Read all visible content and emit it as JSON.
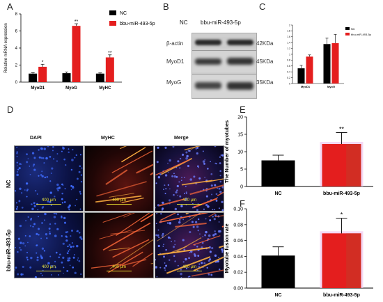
{
  "panels": {
    "A": "A",
    "B": "B",
    "C": "C",
    "D": "D",
    "E": "E",
    "F": "F"
  },
  "colors": {
    "nc": "#000000",
    "mir": "#e41e1e"
  },
  "chart_data": [
    {
      "id": "A",
      "type": "bar",
      "legend": [
        "NC",
        "bbu-miR-493-5p"
      ],
      "legend_position": "top-right",
      "ylabel": "Relative mRNA expression",
      "ylim": [
        0,
        8
      ],
      "yticks": [
        0,
        2,
        4,
        6,
        8
      ],
      "categories": [
        "MyoD1",
        "MyoG",
        "MyHC"
      ],
      "series": [
        {
          "name": "NC",
          "values": [
            1.0,
            1.05,
            1.0
          ],
          "errors": [
            0.1,
            0.12,
            0.08
          ]
        },
        {
          "name": "bbu-miR-493-5p",
          "values": [
            1.8,
            6.6,
            2.9
          ],
          "errors": [
            0.3,
            0.25,
            0.3
          ]
        }
      ],
      "annotations": [
        "*",
        "**",
        "**"
      ]
    },
    {
      "id": "C",
      "type": "bar",
      "legend": [
        "NC",
        "bbu-miR-493-5p"
      ],
      "legend_position": "top-right",
      "ylim": [
        0,
        2.0
      ],
      "yticks": [
        0,
        0.2,
        0.4,
        0.6,
        0.8,
        1.0,
        1.2,
        1.4,
        1.6,
        1.8,
        2.0
      ],
      "categories": [
        "MyoD1",
        "MyoG"
      ],
      "series": [
        {
          "name": "NC",
          "values": [
            0.52,
            1.35
          ],
          "errors": [
            0.1,
            0.2
          ]
        },
        {
          "name": "bbu-miR-493-5p",
          "values": [
            0.92,
            1.38
          ],
          "errors": [
            0.06,
            0.3
          ]
        }
      ]
    },
    {
      "id": "E",
      "type": "bar",
      "ylabel": "The Number of myotubes",
      "ylim": [
        0,
        20
      ],
      "yticks": [
        0,
        5,
        10,
        15,
        20
      ],
      "categories": [
        "NC",
        "bbu-miR-493-5p"
      ],
      "values": [
        7.5,
        12.2
      ],
      "errors": [
        1.5,
        3.3
      ],
      "annotations": [
        "",
        "**"
      ]
    },
    {
      "id": "F",
      "type": "bar",
      "ylabel": "Myotube fusion rate",
      "ylim": [
        0,
        0.1
      ],
      "yticks": [
        0.0,
        0.02,
        0.04,
        0.06,
        0.08,
        0.1
      ],
      "ytick_labels": [
        "0.00",
        "0.02",
        "0.04",
        "0.06",
        "0.08",
        "0.10"
      ],
      "categories": [
        "NC",
        "bbu-miR-493-5p"
      ],
      "values": [
        0.041,
        0.069
      ],
      "errors": [
        0.011,
        0.019
      ],
      "annotations": [
        "",
        "*"
      ]
    }
  ],
  "blot": {
    "columns": [
      "NC",
      "bbu-miR-493-5p"
    ],
    "rows": [
      {
        "label": "β-actin",
        "size": "42KDa"
      },
      {
        "label": "MyoD1",
        "size": "45KDa"
      },
      {
        "label": "MyoG",
        "size": "35KDa"
      }
    ]
  },
  "micro": {
    "columns": [
      "DAPI",
      "MyHC",
      "Merge"
    ],
    "rows": [
      "NC",
      "bbu-miR-493-5p"
    ],
    "scale": "400 μm"
  }
}
